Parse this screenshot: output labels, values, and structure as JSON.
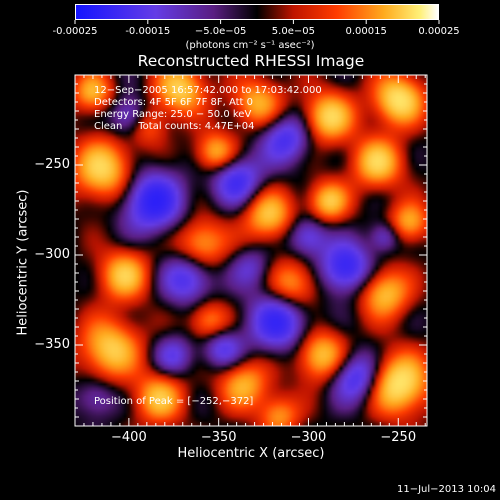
{
  "chart_data": {
    "type": "heatmap",
    "title": "Reconstructed RHESSI Image",
    "xlabel": "Heliocentric X (arcsec)",
    "ylabel": "Heliocentric Y (arcsec)",
    "xlim": [
      -430,
      -234
    ],
    "ylim": [
      -395,
      -200
    ],
    "x_ticks": [
      -400,
      -350,
      -300,
      -250
    ],
    "y_ticks": [
      -250,
      -300,
      -350
    ],
    "x_tick_labels": [
      "−400",
      "−350",
      "−300",
      "−250"
    ],
    "y_tick_labels": [
      "−250",
      "−300",
      "−350"
    ],
    "colorbar": {
      "range": [
        -0.00025,
        0.00025
      ],
      "tick_labels": [
        "-0.00025",
        "-0.00015",
        "−5.0e−05",
        "5.0e−05",
        "0.00015",
        "0.00025"
      ],
      "unit_label": "(photons cm⁻² s⁻¹ asec⁻²)"
    },
    "annotations": {
      "time_range": "12−Sep−2005 16:57:42.000 to 17:03:42.000",
      "detectors": "Detectors: 4F 5F 6F 7F 8F, Att 0",
      "energy_range": "Energy Range: 25.0 − 50.0 keV",
      "method_counts": "Clean     Total counts: 4.47E+04",
      "peak": "Position of Peak = [−252,−372]"
    },
    "peak_position": [
      -252,
      -372
    ],
    "date_stamp": "11−Jul−2013 10:04"
  },
  "colors": {
    "background": "#000000",
    "foreground": "#ffffff"
  }
}
